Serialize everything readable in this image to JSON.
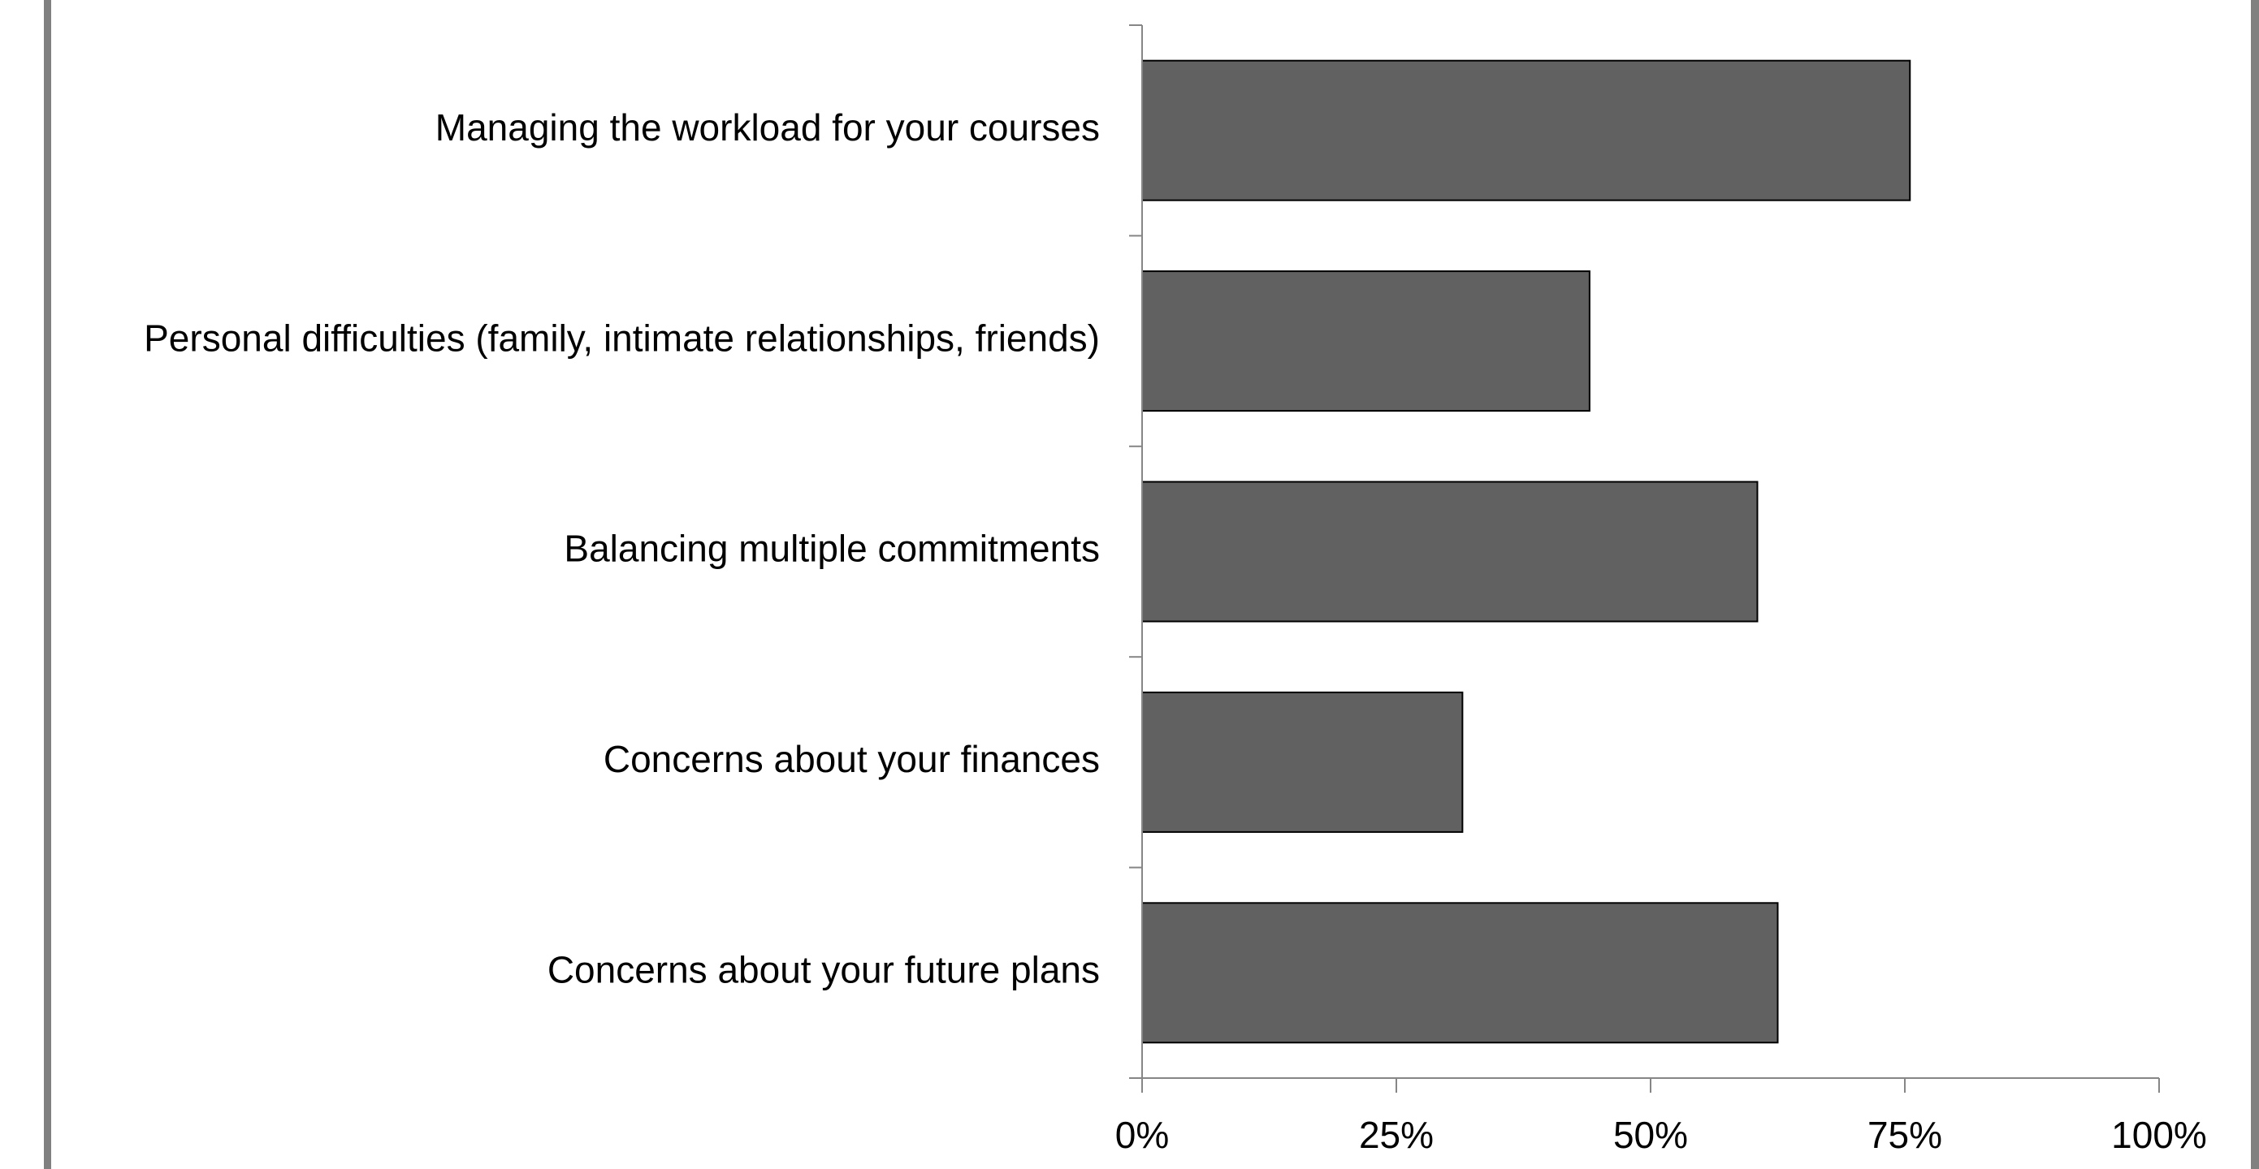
{
  "chart_data": {
    "type": "bar",
    "orientation": "horizontal",
    "categories": [
      "Managing the workload for your courses",
      "Personal difficulties (family, intimate relationships, friends)",
      "Balancing multiple commitments",
      "Concerns about your finances",
      "Concerns about your future plans"
    ],
    "values": [
      75.5,
      44,
      60.5,
      31.5,
      62.5
    ],
    "unit": "%",
    "xlim": [
      0,
      100
    ],
    "xticks": [
      0,
      25,
      50,
      75,
      100
    ],
    "xtick_labels": [
      "0%",
      "25%",
      "50%",
      "75%",
      "100%"
    ],
    "title": "",
    "xlabel": "",
    "ylabel": "",
    "grid": false,
    "legend": "none",
    "bar_color": "#616161",
    "bar_edge_color": "#000000",
    "axis_color": "#868686",
    "frame_color": "#808080"
  }
}
